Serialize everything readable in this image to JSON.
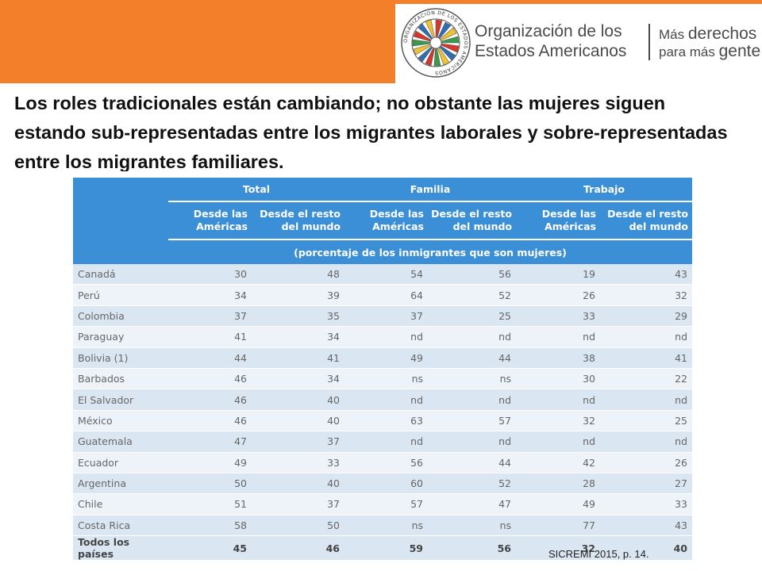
{
  "header": {
    "org_line1": "Organización de los",
    "org_line2": "Estados Americanos",
    "slogan_line1_small": "Más",
    "slogan_line1_big": "derechos",
    "slogan_line2_small": "para más",
    "slogan_line2_big": "gente",
    "banner_color": "#f37f2a",
    "seal_ring_text": "ORGANIZACION DE LOS ESTADOS AMERICANOS"
  },
  "headline": "Los roles tradicionales están cambiando; no obstante las mujeres siguen estando sub-representadas entre los migrantes laborales y sobre-representadas entre los migrantes familiares.",
  "table": {
    "groups": [
      "Total",
      "Familia",
      "Trabajo"
    ],
    "subheaders": [
      [
        "Desde las",
        "Américas"
      ],
      [
        "Desde el resto",
        "del mundo"
      ],
      [
        "Desde las",
        "Américas"
      ],
      [
        "Desde el resto",
        "del mundo"
      ],
      [
        "Desde las",
        "Américas"
      ],
      [
        "Desde el resto",
        "del mundo"
      ]
    ],
    "unit_note": "(porcentaje de los inmigrantes que son mujeres)",
    "rows": [
      {
        "country": "Canadá",
        "values": [
          "30",
          "48",
          "54",
          "56",
          "19",
          "43"
        ]
      },
      {
        "country": "Perú",
        "values": [
          "34",
          "39",
          "64",
          "52",
          "26",
          "32"
        ]
      },
      {
        "country": "Colombia",
        "values": [
          "37",
          "35",
          "37",
          "25",
          "33",
          "29"
        ]
      },
      {
        "country": "Paraguay",
        "values": [
          "41",
          "34",
          "nd",
          "nd",
          "nd",
          "nd"
        ]
      },
      {
        "country": "Bolivia (1)",
        "values": [
          "44",
          "41",
          "49",
          "44",
          "38",
          "41"
        ]
      },
      {
        "country": "Barbados",
        "values": [
          "46",
          "34",
          "ns",
          "ns",
          "30",
          "22"
        ]
      },
      {
        "country": "El Salvador",
        "values": [
          "46",
          "40",
          "nd",
          "nd",
          "nd",
          "nd"
        ]
      },
      {
        "country": "México",
        "values": [
          "46",
          "40",
          "63",
          "57",
          "32",
          "25"
        ]
      },
      {
        "country": "Guatemala",
        "values": [
          "47",
          "37",
          "nd",
          "nd",
          "nd",
          "nd"
        ]
      },
      {
        "country": "Ecuador",
        "values": [
          "49",
          "33",
          "56",
          "44",
          "42",
          "26"
        ]
      },
      {
        "country": "Argentina",
        "values": [
          "50",
          "40",
          "60",
          "52",
          "28",
          "27"
        ]
      },
      {
        "country": "Chile",
        "values": [
          "51",
          "37",
          "57",
          "47",
          "49",
          "33"
        ]
      },
      {
        "country": "Costa Rica",
        "values": [
          "58",
          "50",
          "ns",
          "ns",
          "77",
          "43"
        ]
      }
    ],
    "total": {
      "country": "Todos los países",
      "values": [
        "45",
        "46",
        "59",
        "56",
        "32",
        "40"
      ]
    },
    "header_color": "#3b8fd6"
  },
  "source": "SICREMI 2015, p. 14."
}
